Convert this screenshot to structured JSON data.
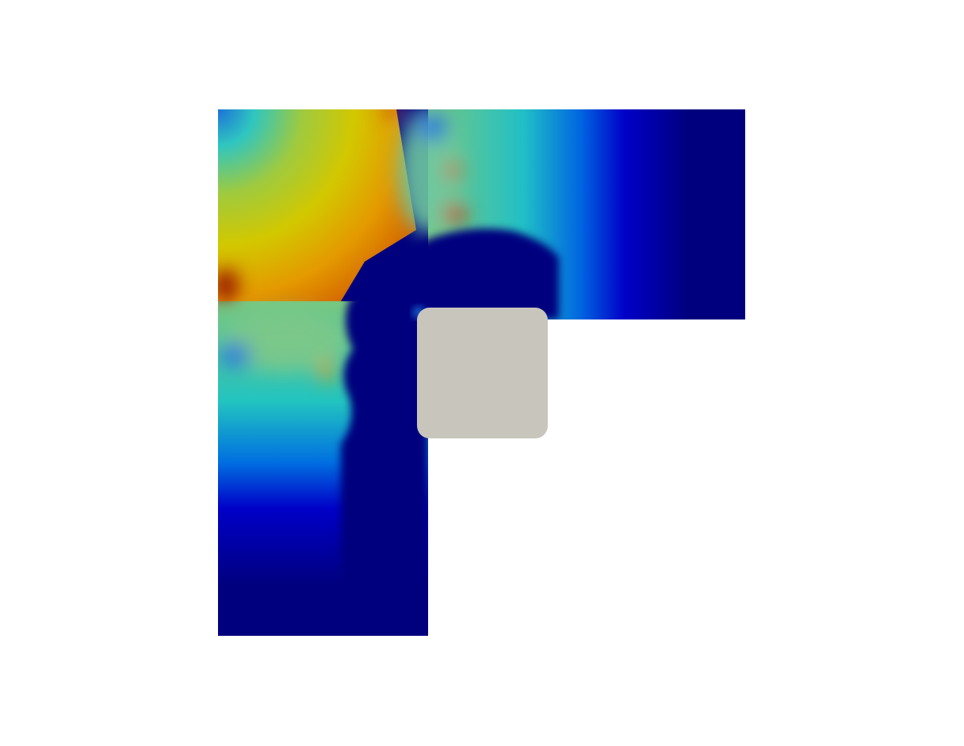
{
  "scene": {
    "background_color": "#ffffff",
    "obstacle_color": "#c8c5bd",
    "colormap": "jet",
    "colors": {
      "dark_blue": "#00007e",
      "blue": "#0000c8",
      "cyan": "#16c8c8",
      "green": "#6ec882",
      "yellow": "#d2c800",
      "orange": "#e07a00",
      "dark_red": "#8a0000"
    }
  }
}
